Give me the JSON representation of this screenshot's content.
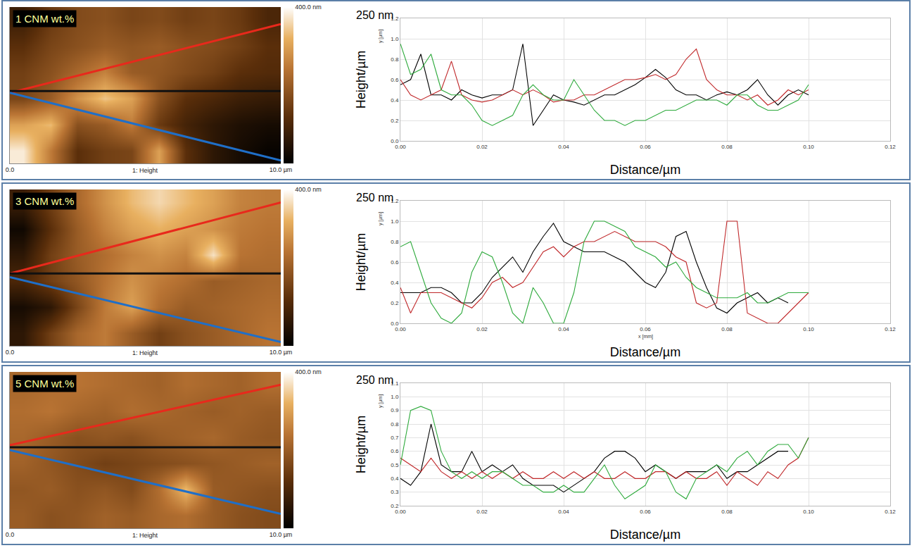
{
  "chart_data": [
    {
      "type": "heatmap",
      "title": "1 CNM wt.%",
      "x_label": "1: Height",
      "xlim": [
        0,
        10
      ],
      "xticks": [
        {
          "value": 0,
          "label": "0.0"
        },
        {
          "value": 10,
          "label": "10.0 µm"
        }
      ],
      "ylim": [
        0,
        5.4
      ],
      "tick_labels": "x",
      "grid": false,
      "cell_x": [
        0.5,
        1.5,
        2.5,
        3.5,
        4.5,
        5.5,
        6.5,
        7.5,
        8.5,
        9.5
      ],
      "cell_y": [
        0.45,
        1.35,
        2.25,
        3.15,
        4.05,
        4.95
      ],
      "cells": [
        [
          380,
          250,
          120,
          150,
          160,
          300,
          120,
          60,
          30,
          10
        ],
        [
          300,
          330,
          180,
          200,
          250,
          140,
          90,
          60,
          40,
          30
        ],
        [
          160,
          200,
          280,
          340,
          300,
          180,
          120,
          100,
          80,
          70
        ],
        [
          150,
          180,
          220,
          260,
          200,
          190,
          170,
          150,
          120,
          110
        ],
        [
          120,
          160,
          180,
          200,
          190,
          200,
          180,
          170,
          150,
          120
        ],
        [
          80,
          140,
          170,
          180,
          160,
          170,
          150,
          160,
          140,
          100
        ]
      ],
      "zlim": [
        0,
        400
      ],
      "colorbar_ticks": [
        {
          "value": 400,
          "label": "400.0 nm"
        }
      ],
      "profile_lines": [
        {
          "color": "#e8291c",
          "x": [
            0,
            10
          ],
          "y": [
            2.44,
            4.81
          ]
        },
        {
          "color": "#111111",
          "x": [
            0,
            10
          ],
          "y": [
            2.5,
            2.5
          ]
        },
        {
          "color": "#1f6fc8",
          "x": [
            0,
            10
          ],
          "y": [
            2.44,
            0.1
          ]
        }
      ]
    },
    {
      "type": "line",
      "annotations": [
        "250 nm"
      ],
      "x_label": "Distance/µm",
      "y_label": "Height/µm",
      "y_sublabel": "y [µm]",
      "grid": true,
      "xlim": [
        0,
        0.12
      ],
      "xticks": [
        {
          "value": 0,
          "label": "0.00"
        },
        0.02,
        0.04,
        0.06,
        0.08,
        {
          "value": 0.1,
          "label": "0.10"
        },
        0.12
      ],
      "ylim": [
        0,
        1.2
      ],
      "yticks": [
        {
          "value": 0,
          "label": "0.0"
        },
        0.2,
        0.4,
        0.6,
        0.8,
        {
          "value": 1,
          "label": "1.0"
        },
        1.2
      ],
      "x": [
        0,
        0.0025,
        0.005,
        0.0075,
        0.01,
        0.0125,
        0.015,
        0.0175,
        0.02,
        0.0225,
        0.025,
        0.0275,
        0.03,
        0.0325,
        0.035,
        0.0375,
        0.04,
        0.0425,
        0.045,
        0.0475,
        0.05,
        0.0525,
        0.055,
        0.0575,
        0.06,
        0.0625,
        0.065,
        0.0675,
        0.07,
        0.0725,
        0.075,
        0.0775,
        0.08,
        0.0825,
        0.085,
        0.0875,
        0.09,
        0.0925,
        0.095,
        0.0975,
        0.1
      ],
      "series": [
        {
          "color": "#000000",
          "values": [
            0.55,
            0.6,
            0.85,
            0.45,
            0.45,
            0.4,
            0.5,
            0.45,
            0.42,
            0.45,
            0.45,
            0.5,
            0.95,
            0.15,
            0.3,
            0.45,
            0.4,
            0.38,
            0.35,
            0.4,
            0.45,
            0.45,
            0.5,
            0.55,
            0.62,
            0.7,
            0.62,
            0.5,
            0.45,
            0.45,
            0.4,
            0.45,
            0.48,
            0.45,
            0.5,
            0.6,
            0.45,
            0.35,
            0.45,
            0.5,
            0.45
          ]
        },
        {
          "color": "#c0282a",
          "values": [
            0.6,
            0.45,
            0.4,
            0.45,
            0.5,
            0.78,
            0.45,
            0.4,
            0.38,
            0.4,
            0.45,
            0.5,
            0.45,
            0.5,
            0.45,
            0.38,
            0.4,
            0.4,
            0.45,
            0.45,
            0.5,
            0.55,
            0.6,
            0.6,
            0.62,
            0.65,
            0.6,
            0.65,
            0.8,
            0.9,
            0.6,
            0.5,
            0.45,
            0.45,
            0.4,
            0.45,
            0.35,
            0.4,
            0.5,
            0.45,
            0.5
          ]
        },
        {
          "color": "#2eaa3c",
          "values": [
            0.95,
            0.65,
            0.7,
            0.85,
            0.5,
            0.45,
            0.45,
            0.35,
            0.2,
            0.15,
            0.2,
            0.25,
            0.45,
            0.55,
            0.45,
            0.4,
            0.4,
            0.6,
            0.45,
            0.3,
            0.2,
            0.2,
            0.15,
            0.2,
            0.2,
            0.25,
            0.3,
            0.3,
            0.35,
            0.4,
            0.4,
            0.4,
            0.35,
            0.45,
            0.45,
            0.35,
            0.3,
            0.3,
            0.35,
            0.4,
            0.55
          ]
        }
      ]
    },
    {
      "type": "heatmap",
      "title": "3 CNM wt.%",
      "x_label": "1: Height",
      "xlim": [
        0,
        10
      ],
      "xticks": [
        {
          "value": 0,
          "label": "0.0"
        },
        {
          "value": 10,
          "label": "10.0 µm"
        }
      ],
      "ylim": [
        0,
        5.4
      ],
      "tick_labels": "x",
      "grid": false,
      "cell_x": [
        0.5,
        1.5,
        2.5,
        3.5,
        4.5,
        5.5,
        6.5,
        7.5,
        8.5,
        9.5
      ],
      "cell_y": [
        0.45,
        1.35,
        2.25,
        3.15,
        4.05,
        4.95
      ],
      "cells": [
        [
          60,
          150,
          220,
          250,
          200,
          150,
          180,
          200,
          220,
          240
        ],
        [
          30,
          60,
          160,
          250,
          300,
          230,
          200,
          210,
          220,
          230
        ],
        [
          100,
          150,
          190,
          240,
          280,
          250,
          230,
          200,
          210,
          220
        ],
        [
          60,
          150,
          200,
          230,
          260,
          280,
          260,
          370,
          240,
          230
        ],
        [
          20,
          120,
          200,
          260,
          300,
          320,
          300,
          280,
          250,
          240
        ],
        [
          80,
          150,
          220,
          280,
          330,
          360,
          330,
          300,
          260,
          250
        ]
      ],
      "zlim": [
        0,
        400
      ],
      "colorbar_ticks": [
        {
          "value": 400,
          "label": "400.0 nm"
        }
      ],
      "profile_lines": [
        {
          "color": "#e8291c",
          "x": [
            0,
            10
          ],
          "y": [
            2.5,
            4.95
          ]
        },
        {
          "color": "#111111",
          "x": [
            0,
            10
          ],
          "y": [
            2.5,
            2.5
          ]
        },
        {
          "color": "#1f6fc8",
          "x": [
            0,
            10
          ],
          "y": [
            2.37,
            0.13
          ]
        }
      ]
    },
    {
      "type": "line",
      "annotations": [
        "250 nm"
      ],
      "x_label": "Distance/µm",
      "y_label": "Height/µm",
      "y_sublabel": "y [µm]",
      "x_sublabel": "x [mm]",
      "grid": true,
      "xlim": [
        0,
        0.12
      ],
      "xticks": [
        {
          "value": 0,
          "label": "0.00"
        },
        0.02,
        0.04,
        0.06,
        0.08,
        {
          "value": 0.1,
          "label": "0.10"
        },
        0.12
      ],
      "ylim": [
        0,
        1.2
      ],
      "yticks": [
        {
          "value": 0,
          "label": "0.0"
        },
        0.2,
        0.4,
        0.6,
        0.8,
        {
          "value": 1,
          "label": "1.0"
        },
        1.2
      ],
      "x": [
        0,
        0.0025,
        0.005,
        0.0075,
        0.01,
        0.0125,
        0.015,
        0.0175,
        0.02,
        0.0225,
        0.025,
        0.0275,
        0.03,
        0.0325,
        0.035,
        0.0375,
        0.04,
        0.0425,
        0.045,
        0.0475,
        0.05,
        0.0525,
        0.055,
        0.0575,
        0.06,
        0.0625,
        0.065,
        0.0675,
        0.07,
        0.0725,
        0.075,
        0.0775,
        0.08,
        0.0825,
        0.085,
        0.0875,
        0.09,
        0.0925,
        0.095,
        0.0975,
        0.1
      ],
      "series": [
        {
          "color": "#000000",
          "values": [
            0.3,
            0.3,
            0.3,
            0.35,
            0.35,
            0.3,
            0.2,
            0.2,
            0.3,
            0.45,
            0.55,
            0.65,
            0.5,
            0.7,
            0.85,
            0.98,
            0.8,
            0.75,
            0.7,
            0.7,
            0.7,
            0.65,
            0.6,
            0.5,
            0.4,
            0.35,
            0.5,
            0.85,
            0.9,
            0.6,
            0.35,
            0.15,
            0.1,
            0.2,
            0.25,
            0.3,
            0.2,
            0.25,
            0.2,
            null,
            null
          ]
        },
        {
          "color": "#c0282a",
          "values": [
            0.35,
            0.1,
            0.3,
            0.3,
            0.3,
            0.25,
            0.2,
            0.15,
            0.25,
            0.4,
            0.45,
            0.35,
            0.4,
            0.55,
            0.7,
            0.75,
            0.65,
            0.75,
            0.8,
            0.8,
            0.85,
            0.9,
            0.85,
            0.8,
            0.8,
            0.8,
            0.75,
            0.65,
            0.6,
            0.2,
            0.15,
            0.2,
            1.0,
            1.0,
            0.1,
            0.05,
            0,
            0,
            0.1,
            0.2,
            0.3
          ]
        },
        {
          "color": "#2eaa3c",
          "values": [
            0.75,
            0.8,
            0.5,
            0.2,
            0.05,
            0,
            0.1,
            0.5,
            0.7,
            0.65,
            0.4,
            0.1,
            0,
            0.35,
            0.2,
            0,
            0,
            0.3,
            0.8,
            1.0,
            1.0,
            0.95,
            0.9,
            0.75,
            0.7,
            0.65,
            0.55,
            0.6,
            0.45,
            0.35,
            0.3,
            0.25,
            0.25,
            0.25,
            0.3,
            0.2,
            0.2,
            0.25,
            0.3,
            0.3,
            0.3
          ]
        }
      ]
    },
    {
      "type": "heatmap",
      "title": "5 CNM wt.%",
      "x_label": "1: Height",
      "xlim": [
        0,
        10
      ],
      "xticks": [
        {
          "value": 0,
          "label": "0.0"
        },
        {
          "value": 10,
          "label": "10.0 µm"
        }
      ],
      "ylim": [
        0,
        5.4
      ],
      "tick_labels": "x",
      "grid": false,
      "cell_x": [
        0.5,
        1.5,
        2.5,
        3.5,
        4.5,
        5.5,
        6.5,
        7.5,
        8.5,
        9.5
      ],
      "cell_y": [
        0.45,
        1.35,
        2.25,
        3.15,
        4.05,
        4.95
      ],
      "cells": [
        [
          200,
          180,
          190,
          210,
          200,
          220,
          230,
          200,
          180,
          170
        ],
        [
          190,
          200,
          180,
          190,
          170,
          230,
          330,
          200,
          190,
          180
        ],
        [
          210,
          190,
          170,
          150,
          160,
          170,
          180,
          190,
          200,
          210
        ],
        [
          220,
          200,
          180,
          190,
          180,
          200,
          210,
          220,
          200,
          190
        ],
        [
          230,
          240,
          220,
          210,
          230,
          220,
          210,
          200,
          210,
          200
        ],
        [
          220,
          230,
          240,
          230,
          220,
          210,
          230,
          220,
          210,
          230
        ]
      ],
      "zlim": [
        0,
        400
      ],
      "colorbar_ticks": [
        {
          "value": 400,
          "label": "400.0 nm"
        }
      ],
      "profile_lines": [
        {
          "color": "#e8291c",
          "x": [
            0,
            10
          ],
          "y": [
            2.87,
            4.96
          ]
        },
        {
          "color": "#111111",
          "x": [
            0,
            10
          ],
          "y": [
            2.8,
            2.8
          ]
        },
        {
          "color": "#1f6fc8",
          "x": [
            0,
            10
          ],
          "y": [
            2.7,
            0.5
          ]
        }
      ]
    },
    {
      "type": "line",
      "annotations": [
        "250 nm"
      ],
      "x_label": "Distance/µm",
      "y_label": "Height/µm",
      "y_sublabel": "y [µm]",
      "grid": true,
      "xlim": [
        0,
        0.12
      ],
      "xticks": [
        {
          "value": 0,
          "label": "0.00"
        },
        0.02,
        0.04,
        0.06,
        0.08,
        {
          "value": 0.1,
          "label": "0.10"
        },
        0.12
      ],
      "ylim": [
        0.2,
        1.1
      ],
      "yticks": [
        0.2,
        0.3,
        0.4,
        0.5,
        0.6,
        0.7,
        0.8,
        0.9,
        {
          "value": 1,
          "label": "1.0"
        },
        1.1
      ],
      "x": [
        0,
        0.0025,
        0.005,
        0.0075,
        0.01,
        0.0125,
        0.015,
        0.0175,
        0.02,
        0.0225,
        0.025,
        0.0275,
        0.03,
        0.0325,
        0.035,
        0.0375,
        0.04,
        0.0425,
        0.045,
        0.0475,
        0.05,
        0.0525,
        0.055,
        0.0575,
        0.06,
        0.0625,
        0.065,
        0.0675,
        0.07,
        0.0725,
        0.075,
        0.0775,
        0.08,
        0.0825,
        0.085,
        0.0875,
        0.09,
        0.0925,
        0.095,
        0.0975,
        0.1
      ],
      "series": [
        {
          "color": "#000000",
          "values": [
            0.4,
            0.35,
            0.45,
            0.8,
            0.5,
            0.45,
            0.45,
            0.6,
            0.45,
            0.5,
            0.45,
            0.5,
            0.4,
            0.35,
            0.35,
            0.35,
            0.3,
            0.35,
            0.4,
            0.45,
            0.55,
            0.6,
            0.6,
            0.55,
            0.45,
            0.5,
            0.45,
            0.4,
            0.45,
            0.45,
            0.45,
            0.5,
            0.4,
            0.45,
            0.45,
            0.5,
            0.55,
            0.6,
            0.6,
            null,
            null
          ]
        },
        {
          "color": "#c0282a",
          "values": [
            0.55,
            0.5,
            0.45,
            0.55,
            0.45,
            0.4,
            0.45,
            0.4,
            0.45,
            0.4,
            0.45,
            0.4,
            0.45,
            0.4,
            0.4,
            0.45,
            0.4,
            0.45,
            0.4,
            0.45,
            0.4,
            0.4,
            0.45,
            0.4,
            0.4,
            0.45,
            0.45,
            0.4,
            0.45,
            0.4,
            0.4,
            0.45,
            0.35,
            0.45,
            0.4,
            0.35,
            0.45,
            0.4,
            0.5,
            0.55,
            0.7
          ]
        },
        {
          "color": "#2eaa3c",
          "values": [
            0.5,
            0.9,
            0.93,
            0.9,
            0.6,
            0.45,
            0.4,
            0.45,
            0.4,
            0.45,
            0.45,
            0.4,
            0.35,
            0.35,
            0.3,
            0.3,
            0.35,
            0.3,
            0.3,
            0.4,
            0.5,
            0.35,
            0.25,
            0.3,
            0.35,
            0.5,
            0.45,
            0.3,
            0.25,
            0.4,
            0.45,
            0.5,
            0.45,
            0.55,
            0.6,
            0.5,
            0.6,
            0.65,
            0.65,
            0.55,
            0.7
          ]
        }
      ]
    }
  ]
}
